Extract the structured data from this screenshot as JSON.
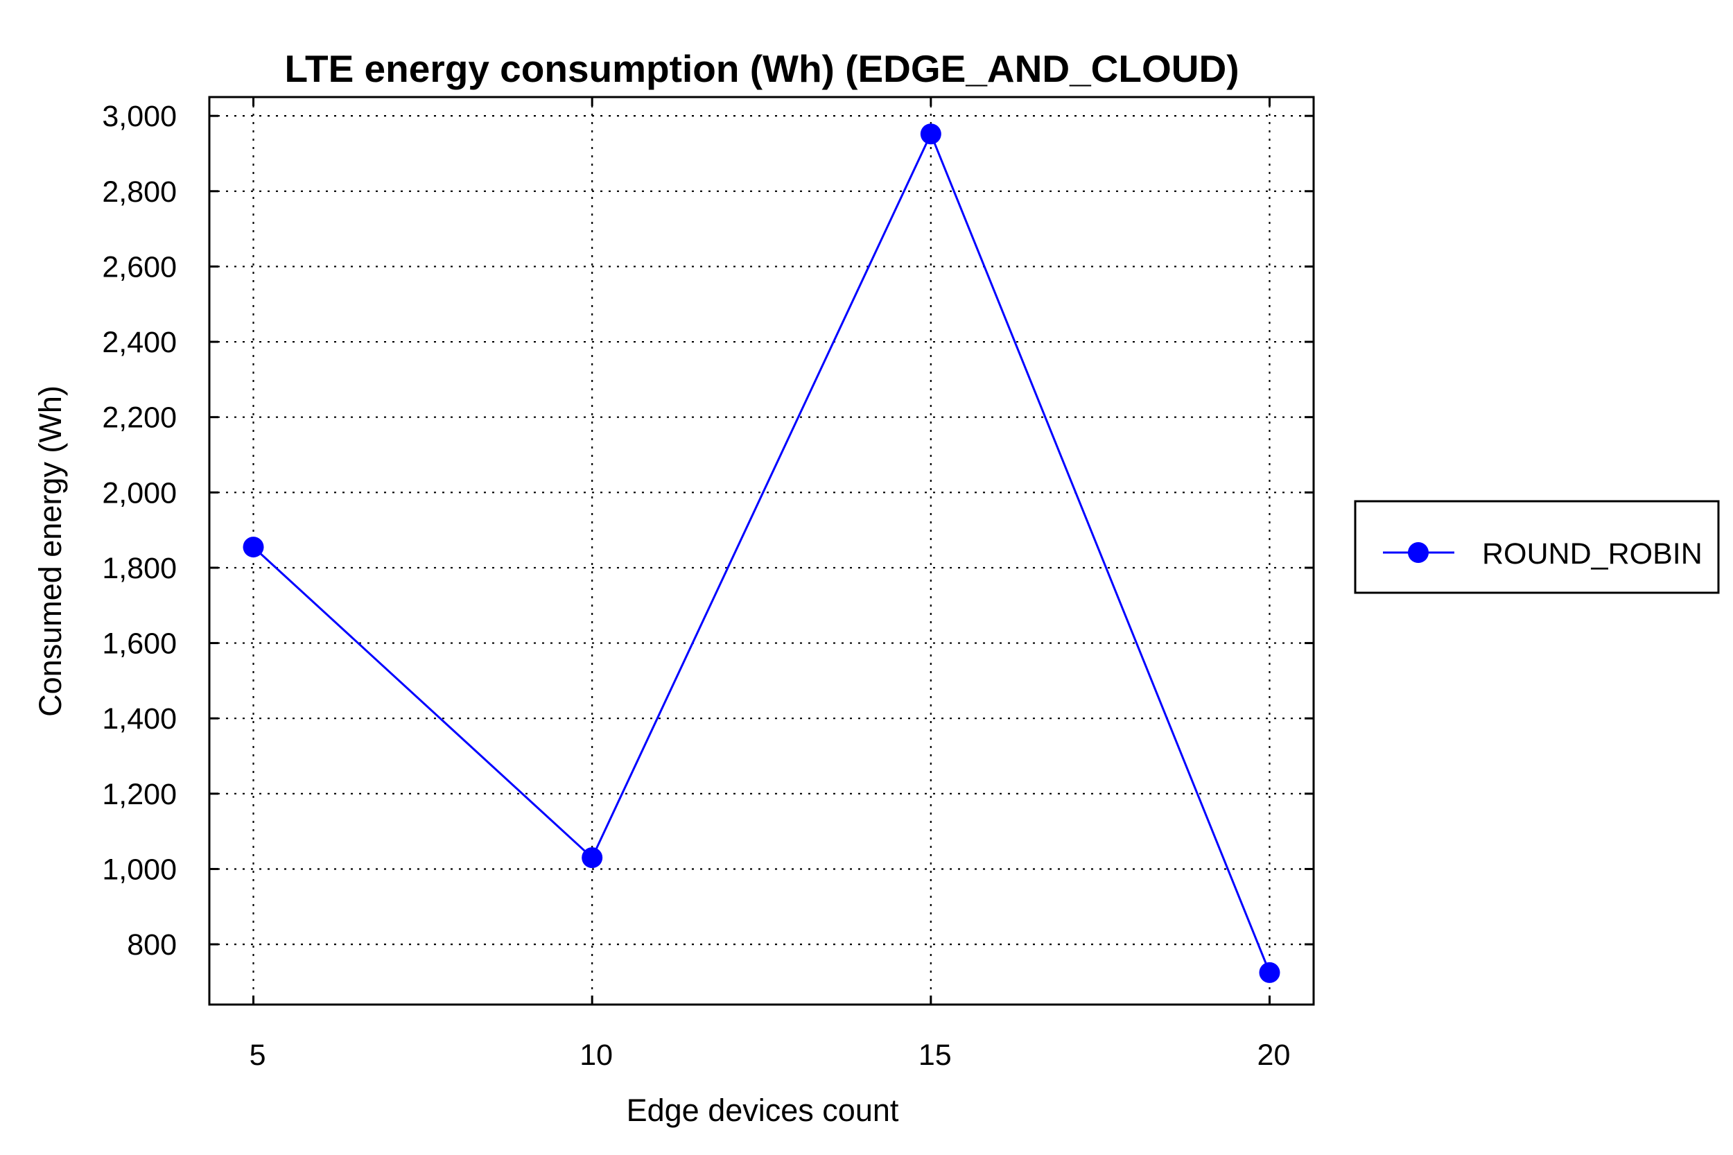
{
  "chart_data": {
    "type": "line",
    "title": "LTE energy consumption (Wh) (EDGE_AND_CLOUD)",
    "xlabel": "Edge devices count",
    "ylabel": "Consumed energy (Wh)",
    "x": [
      5,
      10,
      15,
      20
    ],
    "x_tick_labels": [
      "5",
      "10",
      "15",
      "20"
    ],
    "xlim": [
      4.35,
      20.65
    ],
    "y_ticks": [
      800,
      1000,
      1200,
      1400,
      1600,
      1800,
      2000,
      2200,
      2400,
      2600,
      2800,
      3000
    ],
    "y_tick_labels": [
      "800",
      "1,000",
      "1,200",
      "1,400",
      "1,600",
      "1,800",
      "2,000",
      "2,200",
      "2,400",
      "2,600",
      "2,800",
      "3,000"
    ],
    "ylim": [
      640,
      3050
    ],
    "grid": true,
    "legend_position": "right",
    "series": [
      {
        "name": "ROUND_ROBIN",
        "color": "#0000ff",
        "marker": "circle",
        "values": [
          1855,
          1030,
          2952,
          725
        ]
      }
    ]
  }
}
